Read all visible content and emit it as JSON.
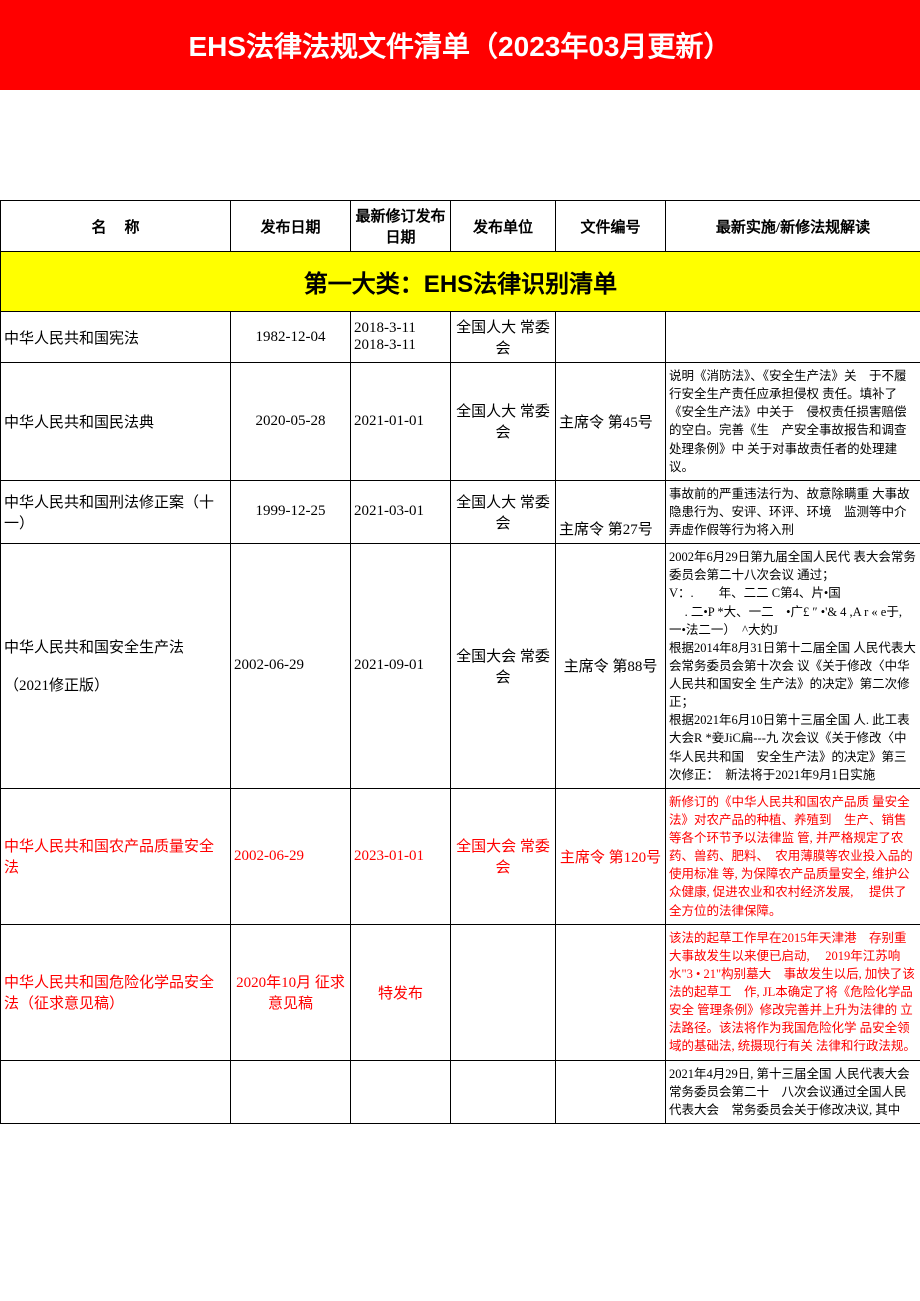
{
  "banner_title": "EHS法律法规文件清单（2023年03月更新）",
  "columns": {
    "name": "名",
    "name2": "称",
    "pubdate": "发布日期",
    "revdate": "最新修订发布日期",
    "unit": "发布单位",
    "docno": "文件编号",
    "impl": "最新实施/新修法规解读"
  },
  "section1_title": "第一大类：EHS法律识别清单",
  "rows": [
    {
      "name": "中华人民共和国宪法",
      "pubdate": "1982-12-04",
      "revdate": "2018-3-11\n2018-3-11",
      "unit": "全国人大 常委会",
      "docno": "",
      "impl": "",
      "red": false
    },
    {
      "name": "中华人民共和国民法典",
      "pubdate": "2020-05-28",
      "revdate": "2021-01-01",
      "unit": "全国人大 常委会",
      "docno": "主席令 第45号",
      "impl": "说明《消防法》、《安全生产法》关　于不履行安全生产责任应承担侵权 责任。填补了《安全生产法》中关于　侵权责任损害赔偿的空白。完善《生　产安全事故报告和调查处理条例》中 关于对事故责任者的处理建议。",
      "red": false
    },
    {
      "name": "中华人民共和国刑法修正案（十一）",
      "pubdate": "1999-12-25",
      "revdate": "2021-03-01",
      "unit": "全国人大 常委会",
      "docno": "主席令 第27号",
      "impl": "事故前的严重违法行为、故意除瞒重 大事故隐患行为、安评、环评、环境　监测等中介弄虚作假等行为将入刑",
      "red": false
    },
    {
      "name": "中华人民共和国安全生产法\n\n（2021修正版）",
      "pubdate": "2002-06-29",
      "revdate": "2021-09-01",
      "unit": "全国大会 常委会",
      "docno": "主席令 第88号",
      "impl": "2002年6月29日第九届全国人民代 表大会常务委员会第二十八次会议 通过；\nV：.　　年、二二 C第4、片•国\n　 . 二•P *大、一二　•广£ ″ •'& 4 ,A r « e于, 一•法二一）　^大妁J\n根据2014年8月31日第十二届全国 人民代表大会常务委员会第十次会 议《关于修改〈中华人民共和国安全 生产法》的决定》第二次修正；\n根据2021年6月10日第十三届全国 人. 此工表大会R *妾JiC扁---九 次会议《关于修改〈中华人民共和国　安全生产法》的决定》第三次修正：　新法将于2021年9月1日实施",
      "red": false
    },
    {
      "name": "中华人民共和国农产品质量安全法",
      "pubdate": "2002-06-29",
      "revdate": "2023-01-01",
      "unit": "全国大会 常委会",
      "docno": "主席令 第120号",
      "impl": "新修订的《中华人民共和国农产品质 量安全法》对农产品的种植、养殖到　生产、销售等各个环节予以法律监 管, 并严格规定了农药、兽药、肥料、　农用薄膜等农业投入品的使用标准 等, 为保障农产品质量安全, 维护公　众健康, 促进农业和农村经济发展,　 提供了全方位的法律保障。",
      "red": true
    },
    {
      "name": "中华人民共和国危险化学品安全法（征求意见稿）",
      "pubdate": "2020年10月 征求意见稿",
      "revdate": "特发布",
      "unit": "",
      "docno": "",
      "impl": "该法的起草工作早在2015年天津港　存别重大事故发生以来便已启动,　 2019年江苏响水\"3 • 21\"构别墓大　事故发生以后, 加快了该法的起草工　作, JL本确定了将《危险化学品安全 管理条例》修改完善并上升为法律的 立法路径。该法将作为我国危险化学 品安全领域的基础法, 统摄现行有关 法律和行政法规。",
      "red": true
    },
    {
      "name": "",
      "pubdate": "",
      "revdate": "",
      "unit": "",
      "docno": "",
      "impl": "2021年4月29日, 第十三届全国 人民代表大会常务委员会第二十　八次会议通过全国人民代表大会　常务委员会关于修改决议, 其中",
      "red": false
    }
  ]
}
